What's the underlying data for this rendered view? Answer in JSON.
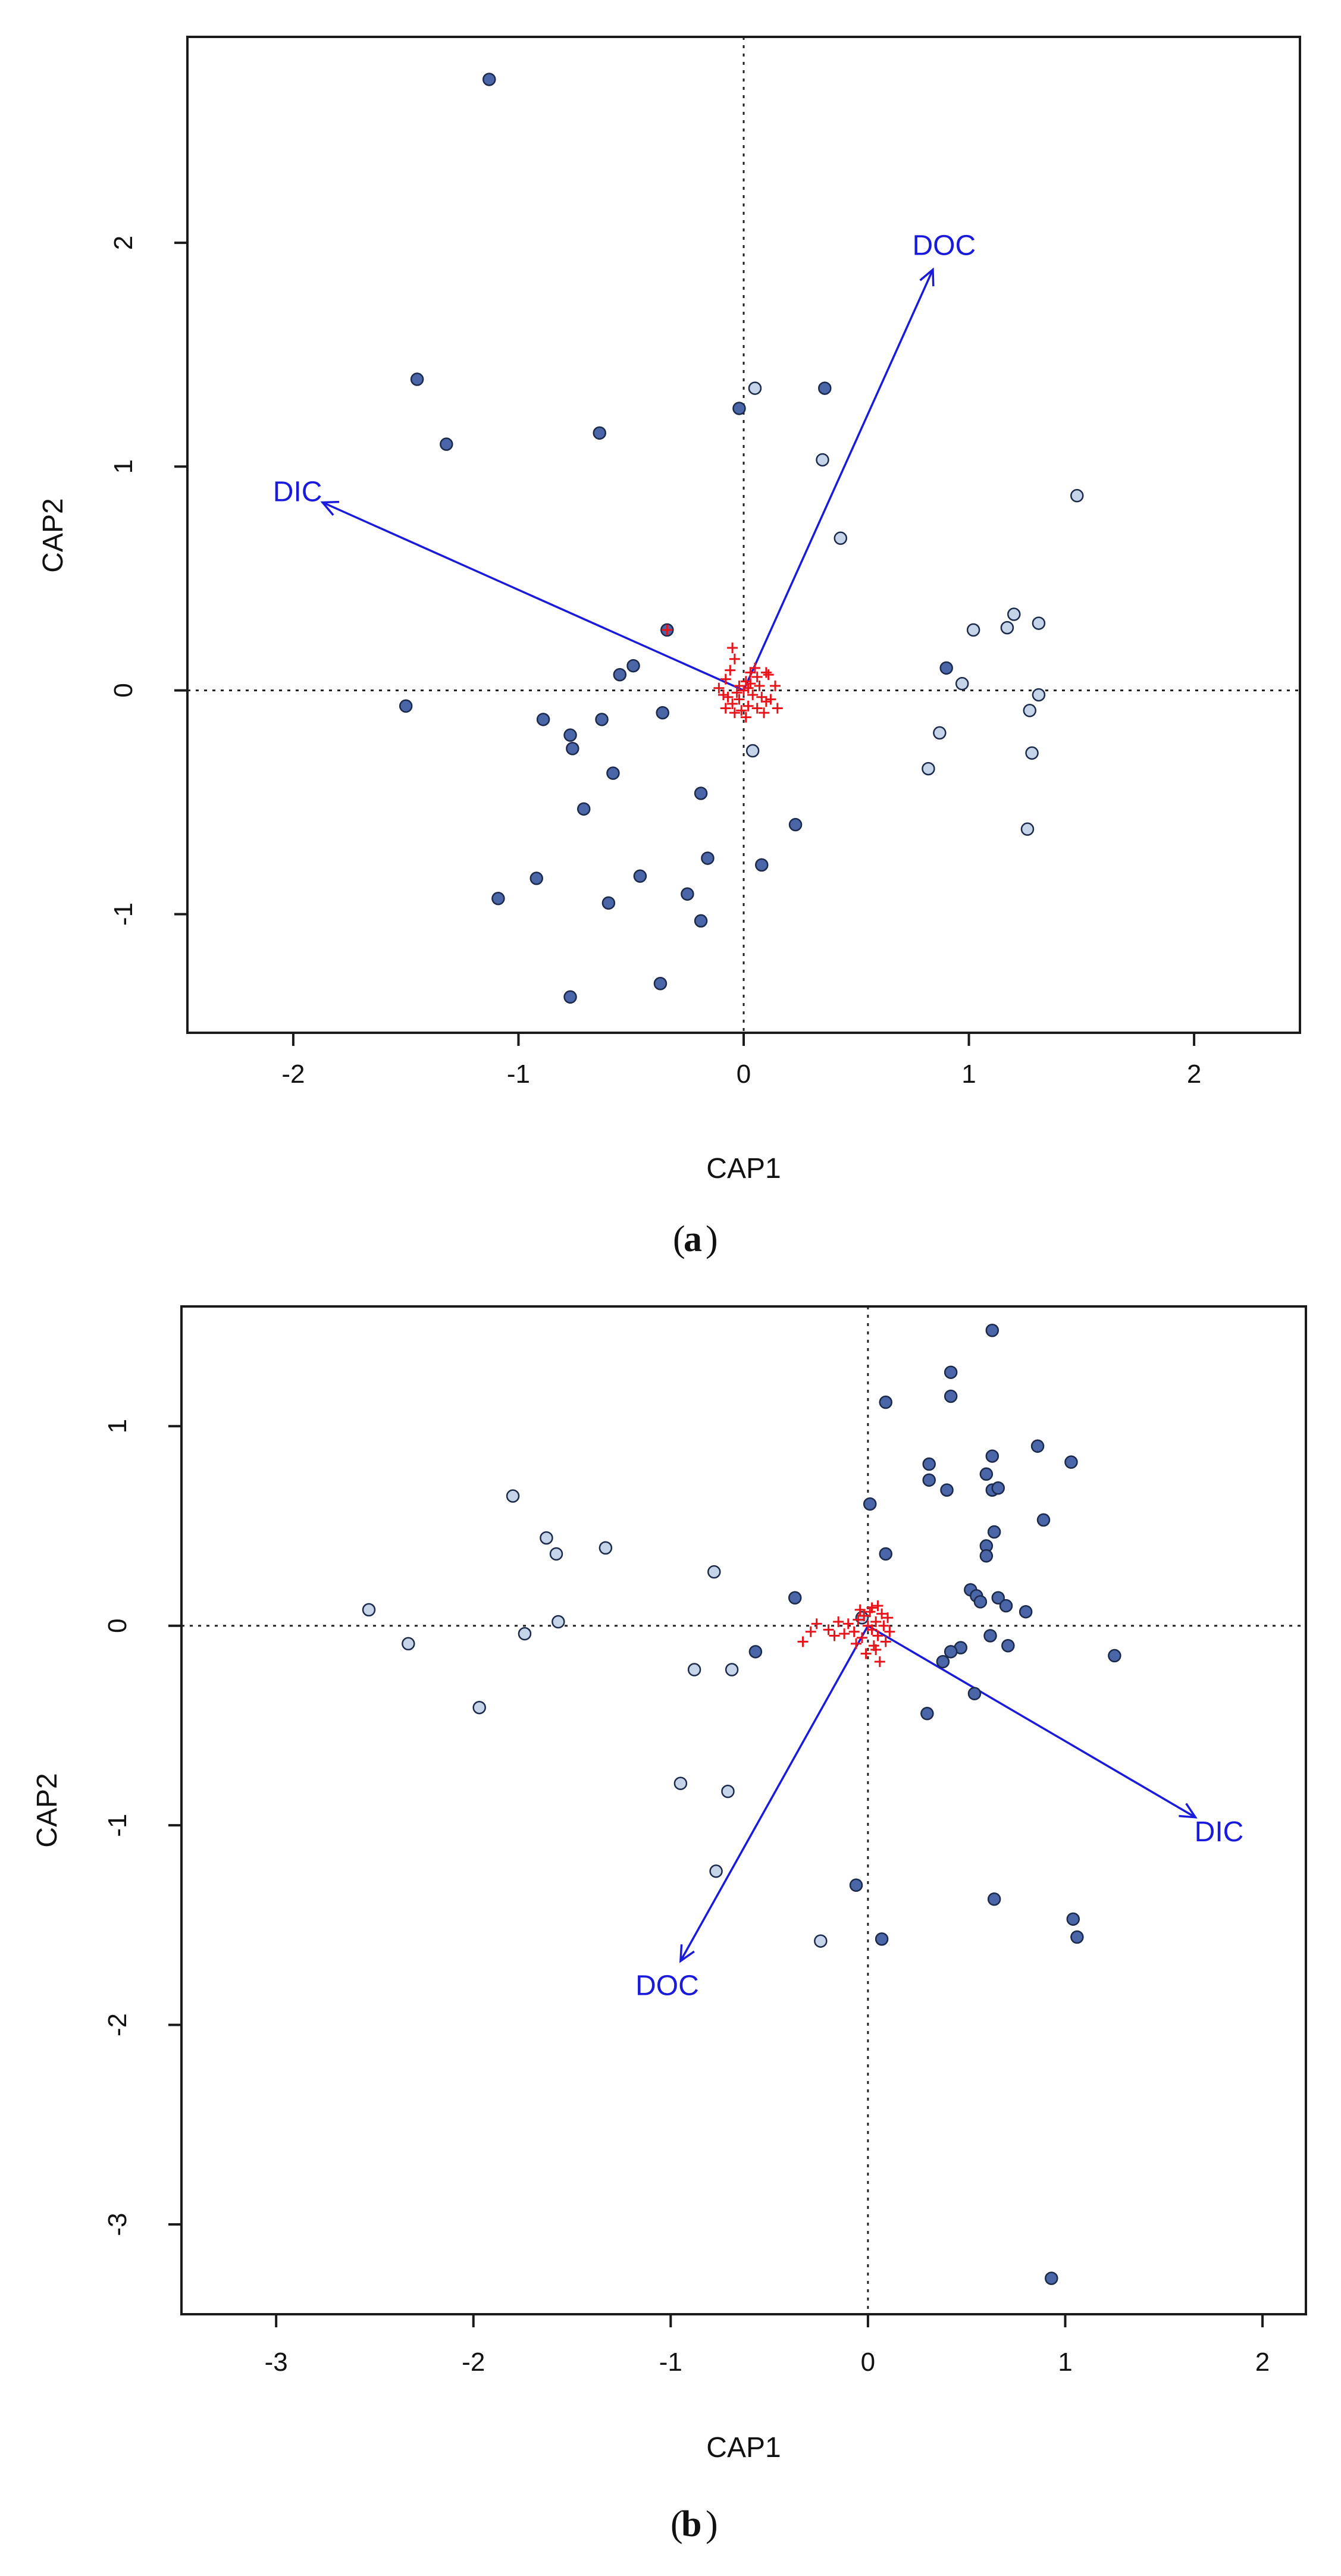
{
  "chart_data": [
    {
      "panel_label": "a",
      "type": "scatter",
      "title": "",
      "xlabel": "CAP1",
      "ylabel": "CAP2",
      "xlim": [
        -2.47,
        2.47
      ],
      "ylim": [
        -1.53,
        2.92
      ],
      "xticks": [
        -2,
        -1,
        0,
        1,
        2
      ],
      "yticks": [
        -1,
        0,
        1,
        2
      ],
      "reference_lines": {
        "x": 0,
        "y": 0,
        "style": "dotted"
      },
      "colors": {
        "dark_point": "#4a66a8",
        "light_point": "#c5d4e8",
        "species": "#e8141a",
        "vector": "#1a1adc",
        "point_edge": "#1b2a4a"
      },
      "vectors": [
        {
          "label": "DIC",
          "x": -1.87,
          "y": 0.84
        },
        {
          "label": "DOC",
          "x": 0.84,
          "y": 1.88
        }
      ],
      "sites_dark": [
        [
          -1.13,
          2.73
        ],
        [
          -1.45,
          1.39
        ],
        [
          -1.32,
          1.1
        ],
        [
          -0.64,
          1.15
        ],
        [
          -0.02,
          1.26
        ],
        [
          0.36,
          1.35
        ],
        [
          -0.49,
          0.11
        ],
        [
          -0.55,
          0.07
        ],
        [
          -0.34,
          0.27
        ],
        [
          -1.5,
          -0.07
        ],
        [
          -0.89,
          -0.13
        ],
        [
          -0.63,
          -0.13
        ],
        [
          -0.36,
          -0.1
        ],
        [
          -0.77,
          -0.2
        ],
        [
          -0.76,
          -0.26
        ],
        [
          -0.58,
          -0.37
        ],
        [
          -0.71,
          -0.53
        ],
        [
          -0.19,
          -0.46
        ],
        [
          -0.92,
          -0.84
        ],
        [
          -1.09,
          -0.93
        ],
        [
          -0.6,
          -0.95
        ],
        [
          -0.46,
          -0.83
        ],
        [
          -0.25,
          -0.91
        ],
        [
          -0.19,
          -1.03
        ],
        [
          -0.16,
          -0.75
        ],
        [
          -0.77,
          -1.37
        ],
        [
          -0.37,
          -1.31
        ],
        [
          0.08,
          -0.78
        ],
        [
          0.23,
          -0.6
        ],
        [
          0.9,
          0.1
        ]
      ],
      "sites_light": [
        [
          0.05,
          1.35
        ],
        [
          0.35,
          1.03
        ],
        [
          0.43,
          0.68
        ],
        [
          1.48,
          0.87
        ],
        [
          1.2,
          0.34
        ],
        [
          1.31,
          0.3
        ],
        [
          1.17,
          0.28
        ],
        [
          1.02,
          0.27
        ],
        [
          0.97,
          0.03
        ],
        [
          1.31,
          -0.02
        ],
        [
          1.27,
          -0.09
        ],
        [
          0.87,
          -0.19
        ],
        [
          1.28,
          -0.28
        ],
        [
          0.82,
          -0.35
        ],
        [
          1.26,
          -0.62
        ],
        [
          0.04,
          -0.27
        ]
      ],
      "species": [
        [
          -0.34,
          0.27
        ],
        [
          -0.05,
          0.19
        ],
        [
          -0.04,
          0.14
        ],
        [
          0.1,
          0.08
        ],
        [
          0.06,
          0.06
        ],
        [
          -0.08,
          0.05
        ],
        [
          0.03,
          0.03
        ],
        [
          -0.02,
          0.02
        ],
        [
          0.02,
          0.01
        ],
        [
          0.0,
          0.0
        ],
        [
          -0.03,
          -0.01
        ],
        [
          0.04,
          -0.02
        ],
        [
          0.08,
          -0.03
        ],
        [
          -0.07,
          -0.03
        ],
        [
          0.12,
          -0.04
        ],
        [
          -0.05,
          -0.06
        ],
        [
          0.02,
          -0.07
        ],
        [
          0.06,
          -0.08
        ],
        [
          -0.01,
          -0.09
        ],
        [
          0.1,
          -0.05
        ],
        [
          -0.09,
          -0.02
        ],
        [
          0.05,
          0.1
        ],
        [
          0.14,
          0.02
        ],
        [
          -0.11,
          0.01
        ],
        [
          0.01,
          -0.12
        ],
        [
          0.09,
          -0.1
        ],
        [
          -0.04,
          -0.1
        ],
        [
          0.03,
          0.08
        ],
        [
          0.15,
          -0.08
        ],
        [
          0.01,
          0.04
        ],
        [
          -0.06,
          0.09
        ],
        [
          0.07,
          0.02
        ],
        [
          -0.02,
          -0.04
        ],
        [
          0.11,
          0.07
        ],
        [
          -0.08,
          -0.08
        ]
      ]
    },
    {
      "panel_label": "b",
      "type": "scatter",
      "title": "",
      "xlabel": "CAP1",
      "ylabel": "CAP2",
      "xlim": [
        -3.48,
        2.22
      ],
      "ylim": [
        -3.45,
        1.6
      ],
      "xticks": [
        -3,
        -2,
        -1,
        0,
        1,
        2
      ],
      "yticks": [
        -3,
        -2,
        -1,
        0,
        1
      ],
      "reference_lines": {
        "x": 0,
        "y": 0,
        "style": "dotted"
      },
      "colors": {
        "dark_point": "#4a66a8",
        "light_point": "#c5d4e8",
        "species": "#e8141a",
        "vector": "#1a1adc",
        "point_edge": "#1b2a4a"
      },
      "vectors": [
        {
          "label": "DIC",
          "x": 1.66,
          "y": -0.96
        },
        {
          "label": "DOC",
          "x": -0.95,
          "y": -1.68
        }
      ],
      "sites_dark": [
        [
          0.63,
          1.48
        ],
        [
          0.09,
          1.12
        ],
        [
          0.42,
          1.27
        ],
        [
          0.42,
          1.15
        ],
        [
          0.86,
          0.9
        ],
        [
          1.03,
          0.82
        ],
        [
          0.63,
          0.85
        ],
        [
          0.31,
          0.81
        ],
        [
          0.6,
          0.76
        ],
        [
          0.31,
          0.73
        ],
        [
          0.63,
          0.68
        ],
        [
          0.4,
          0.68
        ],
        [
          0.66,
          0.69
        ],
        [
          0.89,
          0.53
        ],
        [
          0.01,
          0.61
        ],
        [
          0.64,
          0.47
        ],
        [
          0.6,
          0.4
        ],
        [
          0.6,
          0.35
        ],
        [
          0.09,
          0.36
        ],
        [
          0.52,
          0.18
        ],
        [
          0.55,
          0.15
        ],
        [
          0.66,
          0.14
        ],
        [
          0.7,
          0.1
        ],
        [
          0.57,
          0.12
        ],
        [
          0.8,
          0.07
        ],
        [
          -0.37,
          0.14
        ],
        [
          -0.57,
          -0.13
        ],
        [
          0.62,
          -0.05
        ],
        [
          0.71,
          -0.1
        ],
        [
          0.38,
          -0.18
        ],
        [
          1.25,
          -0.15
        ],
        [
          0.47,
          -0.11
        ],
        [
          0.42,
          -0.13
        ],
        [
          0.54,
          -0.34
        ],
        [
          0.3,
          -0.44
        ],
        [
          -0.06,
          -1.3
        ],
        [
          0.07,
          -1.57
        ],
        [
          0.64,
          -1.37
        ],
        [
          1.04,
          -1.47
        ],
        [
          1.06,
          -1.56
        ],
        [
          0.93,
          -3.27
        ]
      ],
      "sites_light": [
        [
          -1.8,
          0.65
        ],
        [
          -1.63,
          0.44
        ],
        [
          -1.58,
          0.36
        ],
        [
          -1.33,
          0.39
        ],
        [
          -0.78,
          0.27
        ],
        [
          -2.53,
          0.08
        ],
        [
          -1.57,
          0.02
        ],
        [
          -1.74,
          -0.04
        ],
        [
          -2.33,
          -0.09
        ],
        [
          -0.88,
          -0.22
        ],
        [
          -0.69,
          -0.22
        ],
        [
          -1.97,
          -0.41
        ],
        [
          -0.95,
          -0.79
        ],
        [
          -0.71,
          -0.83
        ],
        [
          -0.77,
          -1.23
        ],
        [
          -0.24,
          -1.58
        ],
        [
          -0.03,
          0.04
        ]
      ],
      "species": [
        [
          -0.33,
          -0.08
        ],
        [
          -0.29,
          -0.03
        ],
        [
          -0.26,
          0.01
        ],
        [
          -0.15,
          0.02
        ],
        [
          -0.1,
          0.01
        ],
        [
          -0.07,
          -0.03
        ],
        [
          -0.05,
          0.03
        ],
        [
          -0.02,
          0.05
        ],
        [
          0.0,
          0.0
        ],
        [
          0.02,
          -0.02
        ],
        [
          0.04,
          0.02
        ],
        [
          0.05,
          -0.05
        ],
        [
          0.07,
          0.06
        ],
        [
          0.09,
          -0.08
        ],
        [
          0.06,
          -0.18
        ],
        [
          -0.03,
          -0.06
        ],
        [
          0.01,
          0.07
        ],
        [
          0.03,
          -0.1
        ],
        [
          0.08,
          0.0
        ],
        [
          -0.12,
          -0.04
        ],
        [
          -0.2,
          -0.02
        ],
        [
          0.1,
          0.04
        ],
        [
          0.02,
          0.09
        ],
        [
          -0.04,
          0.08
        ],
        [
          0.05,
          0.1
        ],
        [
          -0.17,
          -0.05
        ],
        [
          0.11,
          -0.03
        ],
        [
          -0.06,
          -0.09
        ],
        [
          0.04,
          -0.12
        ],
        [
          -0.01,
          -0.14
        ]
      ]
    }
  ]
}
